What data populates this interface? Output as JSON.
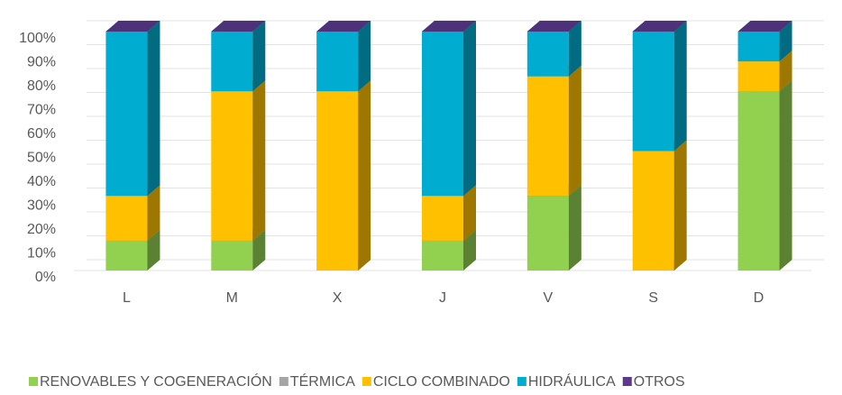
{
  "chart_data": {
    "type": "bar3d_stacked",
    "categories": [
      "L",
      "M",
      "X",
      "J",
      "V",
      "S",
      "D"
    ],
    "series": [
      {
        "name": "RENOVABLES Y COGENERACIÓN",
        "color": "#92d050",
        "values": [
          12.5,
          12.5,
          0,
          12.5,
          31.25,
          0,
          75
        ]
      },
      {
        "name": "TÉRMICA",
        "color": "#a5a5a5",
        "values": [
          0,
          0,
          0,
          0,
          0,
          0,
          0
        ]
      },
      {
        "name": "CICLO COMBINADO",
        "color": "#ffc000",
        "values": [
          18.75,
          62.5,
          75,
          18.75,
          50,
          50,
          12.5
        ]
      },
      {
        "name": "HIDRÁULICA",
        "color": "#00add0",
        "values": [
          68.75,
          25,
          25,
          68.75,
          18.75,
          50,
          12.5
        ]
      },
      {
        "name": "OTROS",
        "color": "#5b3a8e",
        "values": [
          0,
          0,
          0,
          0,
          0,
          0,
          0
        ]
      }
    ],
    "ylim": [
      0,
      100
    ],
    "yticks": [
      {
        "value": 0,
        "label": "0%"
      },
      {
        "value": 10,
        "label": "10%"
      },
      {
        "value": 20,
        "label": "20%"
      },
      {
        "value": 30,
        "label": "30%"
      },
      {
        "value": 40,
        "label": "40%"
      },
      {
        "value": 50,
        "label": "50%"
      },
      {
        "value": 60,
        "label": "60%"
      },
      {
        "value": 70,
        "label": "70%"
      },
      {
        "value": 80,
        "label": "80%"
      },
      {
        "value": 90,
        "label": "90%"
      },
      {
        "value": 100,
        "label": "100%"
      }
    ],
    "grid": true
  }
}
